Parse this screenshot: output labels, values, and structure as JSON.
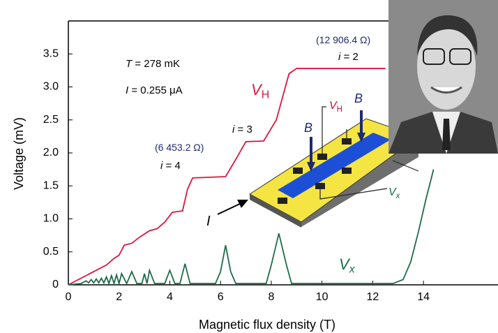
{
  "chart_data": {
    "type": "line",
    "xlabel": "Magnetic flux density    (T)",
    "ylabel": "Voltage  (mV)",
    "xlim": [
      0,
      16.5
    ],
    "ylim": [
      0,
      4
    ],
    "xticks": [
      0,
      2,
      4,
      6,
      8,
      10,
      12,
      14
    ],
    "yticks": [
      0,
      0.5,
      {
        "value": 1,
        "label": "1.0"
      },
      1.5,
      {
        "value": 2,
        "label": "2.0"
      },
      2.5,
      {
        "value": 3,
        "label": "3.0"
      },
      3.5
    ],
    "series": [
      {
        "name": "V",
        "sub": "H",
        "color": "#d81840",
        "x": [
          0,
          1,
          1.5,
          1.8,
          2,
          2.2,
          2.5,
          2.8,
          3.2,
          3.5,
          3.8,
          4.1,
          4.5,
          4.7,
          4.9,
          6.2,
          6.6,
          7.0,
          7.7,
          8.2,
          8.7,
          9.0,
          12.5
        ],
        "values": [
          0,
          0.2,
          0.3,
          0.4,
          0.45,
          0.6,
          0.63,
          0.72,
          0.82,
          0.85,
          0.95,
          1.1,
          1.12,
          1.45,
          1.62,
          1.64,
          1.9,
          2.17,
          2.18,
          2.5,
          3.2,
          3.28,
          3.28
        ]
      },
      {
        "name": "V",
        "sub": "x",
        "color": "#1e6b4a",
        "x": [
          0,
          0.5,
          0.7,
          0.8,
          0.9,
          1.0,
          1.1,
          1.2,
          1.3,
          1.4,
          1.5,
          1.6,
          1.7,
          1.8,
          1.9,
          2.0,
          2.1,
          2.3,
          2.5,
          2.7,
          2.9,
          3.0,
          3.1,
          3.2,
          3.4,
          3.8,
          4.0,
          4.2,
          4.4,
          4.6,
          4.8,
          5.8,
          6.0,
          6.2,
          6.4,
          6.6,
          7.8,
          8.0,
          8.3,
          8.6,
          8.8,
          12.8,
          13.2,
          13.5,
          13.8,
          14.1,
          14.4
        ],
        "values": [
          0,
          0.02,
          0.06,
          0.03,
          0.08,
          0.03,
          0.09,
          0.03,
          0.1,
          0.03,
          0.12,
          0.02,
          0.14,
          0.02,
          0.15,
          0.02,
          0.17,
          0.02,
          0.2,
          0.02,
          0.02,
          0.17,
          0.02,
          0.22,
          0.02,
          0.02,
          0.22,
          0.02,
          0.02,
          0.32,
          0.02,
          0.02,
          0.2,
          0.6,
          0.2,
          0.02,
          0.02,
          0.3,
          0.78,
          0.3,
          0.02,
          0.02,
          0.08,
          0.35,
          0.8,
          1.3,
          1.75
        ]
      }
    ],
    "annotations": [
      {
        "color": "#000000",
        "size": 15,
        "parts": [
          {
            "t": "T",
            "italic": true
          },
          {
            "t": " = 278 mK"
          }
        ]
      },
      {
        "color": "#000000",
        "size": 15,
        "parts": [
          {
            "t": "I",
            "italic": true
          },
          {
            "t": " = 0.255 μA"
          }
        ]
      },
      {
        "color": "#d81840",
        "size": 22,
        "parts": [
          {
            "t": "V",
            "italic": true
          },
          {
            "t": "H",
            "sub": true
          }
        ]
      },
      {
        "color": "#1f2a6e",
        "size": 14,
        "parts": [
          {
            "t": "(12 906.4 Ω)"
          }
        ]
      },
      {
        "color": "#000000",
        "size": 15,
        "parts": [
          {
            "t": "i",
            "italic": true
          },
          {
            "t": " = 2"
          }
        ]
      },
      {
        "color": "#000000",
        "size": 15,
        "parts": [
          {
            "t": "i",
            "italic": true
          },
          {
            "t": " = 3"
          }
        ]
      },
      {
        "color": "#1f2a6e",
        "size": 14,
        "parts": [
          {
            "t": "(6 453.2 Ω)"
          }
        ]
      },
      {
        "color": "#000000",
        "size": 15,
        "parts": [
          {
            "t": "i",
            "italic": true
          },
          {
            "t": " = 4"
          }
        ]
      },
      {
        "color": "#1e6b4a",
        "size": 22,
        "parts": [
          {
            "t": "V",
            "italic": true
          },
          {
            "t": "x",
            "sub": true,
            "italic": true
          }
        ]
      },
      {
        "color": "#c0143c",
        "size": 16,
        "parts": [
          {
            "t": "V",
            "italic": true
          },
          {
            "t": "H",
            "sub": true
          }
        ]
      },
      {
        "color": "#1f2a6e",
        "size": 18,
        "parts": [
          {
            "t": "B",
            "italic": true
          }
        ]
      },
      {
        "color": "#1f2a6e",
        "size": 18,
        "parts": [
          {
            "t": "B",
            "italic": true
          }
        ]
      },
      {
        "color": "#1e6b4a",
        "size": 16,
        "parts": [
          {
            "t": "V",
            "italic": true
          },
          {
            "t": "x",
            "sub": true,
            "italic": true
          }
        ]
      },
      {
        "color": "#000000",
        "size": 20,
        "parts": [
          {
            "t": "I",
            "italic": true
          }
        ]
      }
    ]
  }
}
